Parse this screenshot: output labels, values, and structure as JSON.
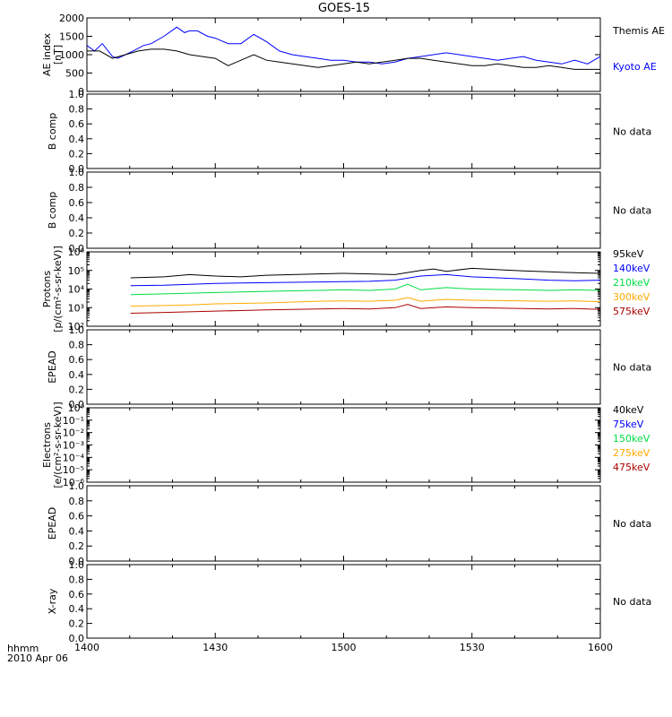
{
  "title": "GOES-15",
  "footer": {
    "time_label": "hhmm",
    "date_label": "2010 Apr 06"
  },
  "time_ticks": [
    "1400",
    "1430",
    "1500",
    "1530",
    "1600"
  ],
  "chart_data": [
    {
      "type": "line",
      "ylabel": [
        "AE index",
        "[nT]"
      ],
      "ylim": [
        0,
        2000
      ],
      "yticks": [
        "0",
        "500",
        "1000",
        "1500",
        "2000"
      ],
      "x_hours_range": [
        14.0,
        16.0
      ],
      "series": [
        {
          "name": "Kyoto AE",
          "color": "#0000ff",
          "x": [
            14.0,
            14.03,
            14.06,
            14.1,
            14.12,
            14.15,
            14.18,
            14.22,
            14.25,
            14.3,
            14.35,
            14.38,
            14.4,
            14.43,
            14.47,
            14.5,
            14.55,
            14.6,
            14.65,
            14.7,
            14.75,
            14.8,
            14.85,
            14.9,
            14.95,
            15.0,
            15.05,
            15.1,
            15.15,
            15.2,
            15.25,
            15.3,
            15.35,
            15.4,
            15.45,
            15.5,
            15.55,
            15.6,
            15.65,
            15.7,
            15.75,
            15.8,
            15.85,
            15.9,
            15.95,
            16.0
          ],
          "values": [
            1250,
            1100,
            1300,
            950,
            900,
            1000,
            1100,
            1250,
            1300,
            1500,
            1750,
            1600,
            1650,
            1650,
            1500,
            1450,
            1300,
            1300,
            1550,
            1350,
            1100,
            1000,
            950,
            900,
            850,
            850,
            800,
            800,
            750,
            800,
            900,
            950,
            1000,
            1050,
            1000,
            950,
            900,
            850,
            900,
            950,
            850,
            800,
            750,
            850,
            750,
            950
          ]
        },
        {
          "name": "Themis AE",
          "color": "#000000",
          "x": [
            14.0,
            14.05,
            14.1,
            14.15,
            14.2,
            14.25,
            14.3,
            14.35,
            14.4,
            14.45,
            14.5,
            14.55,
            14.6,
            14.65,
            14.7,
            14.75,
            14.8,
            14.85,
            14.9,
            14.95,
            15.0,
            15.05,
            15.1,
            15.15,
            15.2,
            15.25,
            15.3,
            15.35,
            15.4,
            15.45,
            15.5,
            15.55,
            15.6,
            15.65,
            15.7,
            15.75,
            15.8,
            15.85,
            15.9,
            15.95,
            16.0
          ],
          "values": [
            1100,
            1100,
            900,
            1000,
            1100,
            1150,
            1150,
            1100,
            1000,
            950,
            900,
            700,
            850,
            1000,
            850,
            800,
            750,
            700,
            650,
            700,
            750,
            800,
            750,
            800,
            850,
            900,
            900,
            850,
            800,
            750,
            700,
            700,
            750,
            700,
            650,
            650,
            700,
            650,
            600,
            600,
            600
          ]
        }
      ]
    },
    {
      "type": "line",
      "ylabel": [
        "B comp"
      ],
      "ylim": [
        0,
        1
      ],
      "yticks": [
        "0.0",
        "0.2",
        "0.4",
        "0.6",
        "0.8",
        "1.0"
      ],
      "status": "No data",
      "series": []
    },
    {
      "type": "line",
      "ylabel": [
        "B comp"
      ],
      "ylim": [
        0,
        1
      ],
      "yticks": [
        "0.0",
        "0.2",
        "0.4",
        "0.6",
        "0.8",
        "1.0"
      ],
      "status": "No data",
      "series": []
    },
    {
      "type": "line",
      "scale": "log",
      "ylabel": [
        "Protons",
        "[p/(cm²-s-sr-keV)]"
      ],
      "ylim": [
        100,
        1000000
      ],
      "yticks": [
        "10²",
        "10³",
        "10⁴",
        "10⁵",
        "10⁶"
      ],
      "x_hours_range": [
        14.0,
        16.0
      ],
      "series": [
        {
          "name": "575keV",
          "color": "#aa0000",
          "x": [
            14.17,
            14.3,
            14.4,
            14.5,
            14.6,
            14.7,
            14.8,
            14.9,
            15.0,
            15.1,
            15.2,
            15.25,
            15.3,
            15.4,
            15.5,
            15.6,
            15.7,
            15.8,
            15.9,
            16.0
          ],
          "values": [
            500,
            550,
            600,
            650,
            700,
            750,
            800,
            850,
            900,
            850,
            1000,
            1500,
            900,
            1100,
            1000,
            950,
            900,
            850,
            900,
            800
          ]
        },
        {
          "name": "300keV",
          "color": "#ffaa00",
          "x": [
            14.17,
            14.3,
            14.4,
            14.5,
            14.6,
            14.7,
            14.8,
            14.9,
            15.0,
            15.1,
            15.2,
            15.25,
            15.3,
            15.4,
            15.5,
            15.6,
            15.7,
            15.8,
            15.9,
            16.0
          ],
          "values": [
            1200,
            1300,
            1400,
            1600,
            1700,
            1800,
            2000,
            2200,
            2300,
            2200,
            2500,
            3500,
            2200,
            2800,
            2500,
            2400,
            2300,
            2200,
            2300,
            2100
          ]
        },
        {
          "name": "210keV",
          "color": "#00dd44",
          "x": [
            14.17,
            14.3,
            14.4,
            14.5,
            14.6,
            14.7,
            14.8,
            14.9,
            15.0,
            15.1,
            15.2,
            15.25,
            15.3,
            15.4,
            15.5,
            15.6,
            15.7,
            15.8,
            15.9,
            16.0
          ],
          "values": [
            5000,
            5500,
            6000,
            6500,
            7000,
            7500,
            8000,
            8500,
            9000,
            8500,
            10000,
            18000,
            9000,
            12000,
            10000,
            9500,
            9000,
            8500,
            9000,
            8500
          ]
        },
        {
          "name": "140keV",
          "color": "#0000ff",
          "x": [
            14.17,
            14.3,
            14.4,
            14.5,
            14.6,
            14.7,
            14.8,
            14.9,
            15.0,
            15.1,
            15.2,
            15.3,
            15.4,
            15.5,
            15.6,
            15.7,
            15.8,
            15.9,
            16.0
          ],
          "values": [
            15000,
            16000,
            18000,
            20000,
            21000,
            22000,
            23000,
            24000,
            25000,
            26000,
            30000,
            50000,
            60000,
            45000,
            40000,
            35000,
            30000,
            28000,
            30000
          ]
        },
        {
          "name": "95keV",
          "color": "#000000",
          "x": [
            14.17,
            14.3,
            14.4,
            14.5,
            14.6,
            14.7,
            14.8,
            14.9,
            15.0,
            15.1,
            15.2,
            15.3,
            15.35,
            15.4,
            15.5,
            15.6,
            15.7,
            15.8,
            15.9,
            16.0
          ],
          "values": [
            40000,
            45000,
            60000,
            50000,
            45000,
            55000,
            60000,
            65000,
            70000,
            65000,
            60000,
            100000,
            120000,
            90000,
            130000,
            110000,
            95000,
            85000,
            75000,
            70000
          ]
        }
      ]
    },
    {
      "type": "line",
      "ylabel": [
        "EPEAD"
      ],
      "ylim": [
        0,
        1
      ],
      "yticks": [
        "0.0",
        "0.2",
        "0.4",
        "0.6",
        "0.8",
        "1.0"
      ],
      "status": "No data",
      "series": []
    },
    {
      "type": "line",
      "scale": "log",
      "ylabel": [
        "Electrons",
        "[e/(cm²-s-sr-keV)]"
      ],
      "ylim": [
        1e-06,
        1
      ],
      "yticks": [
        "10⁻⁶",
        "10⁻⁵",
        "10⁻⁴",
        "10⁻³",
        "10⁻²",
        "10⁻¹",
        "10⁰"
      ],
      "legend": [
        {
          "name": "475keV",
          "color": "#aa0000"
        },
        {
          "name": "275keV",
          "color": "#ffaa00"
        },
        {
          "name": "150keV",
          "color": "#00dd44"
        },
        {
          "name": "75keV",
          "color": "#0000ff"
        },
        {
          "name": "40keV",
          "color": "#000000"
        }
      ],
      "series": []
    },
    {
      "type": "line",
      "ylabel": [
        "EPEAD"
      ],
      "ylim": [
        0,
        1
      ],
      "yticks": [
        "0.0",
        "0.2",
        "0.4",
        "0.6",
        "0.8",
        "1.0"
      ],
      "status": "No data",
      "series": []
    },
    {
      "type": "line",
      "ylabel": [
        "X-ray"
      ],
      "ylim": [
        0,
        1
      ],
      "yticks": [
        "0.0",
        "0.2",
        "0.4",
        "0.6",
        "0.8",
        "1.0"
      ],
      "status": "No data",
      "series": []
    }
  ]
}
